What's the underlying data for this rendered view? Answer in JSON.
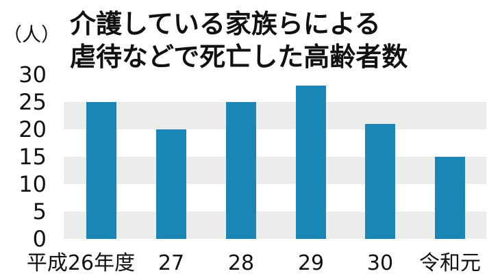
{
  "chart_data": {
    "type": "bar",
    "title": "介護している家族らによる虐待などで死亡した高齢者数",
    "title_lines": [
      "介護している家族らによる",
      "虐待などで死亡した高齢者数"
    ],
    "unit_label": "（人）",
    "categories": [
      "平成26年度",
      "27",
      "28",
      "29",
      "30",
      "令和元"
    ],
    "values": [
      25,
      20,
      25,
      28,
      21,
      15
    ],
    "ylim": [
      0,
      30
    ],
    "yticks": [
      0,
      5,
      10,
      15,
      20,
      25,
      30
    ],
    "xlabel": "",
    "ylabel": "",
    "grid": "alternating horizontal bands",
    "legend": "none"
  },
  "colors": {
    "bar": "#1a86b5",
    "band": "#ececea",
    "text": "#111111",
    "background": "#ffffff"
  }
}
